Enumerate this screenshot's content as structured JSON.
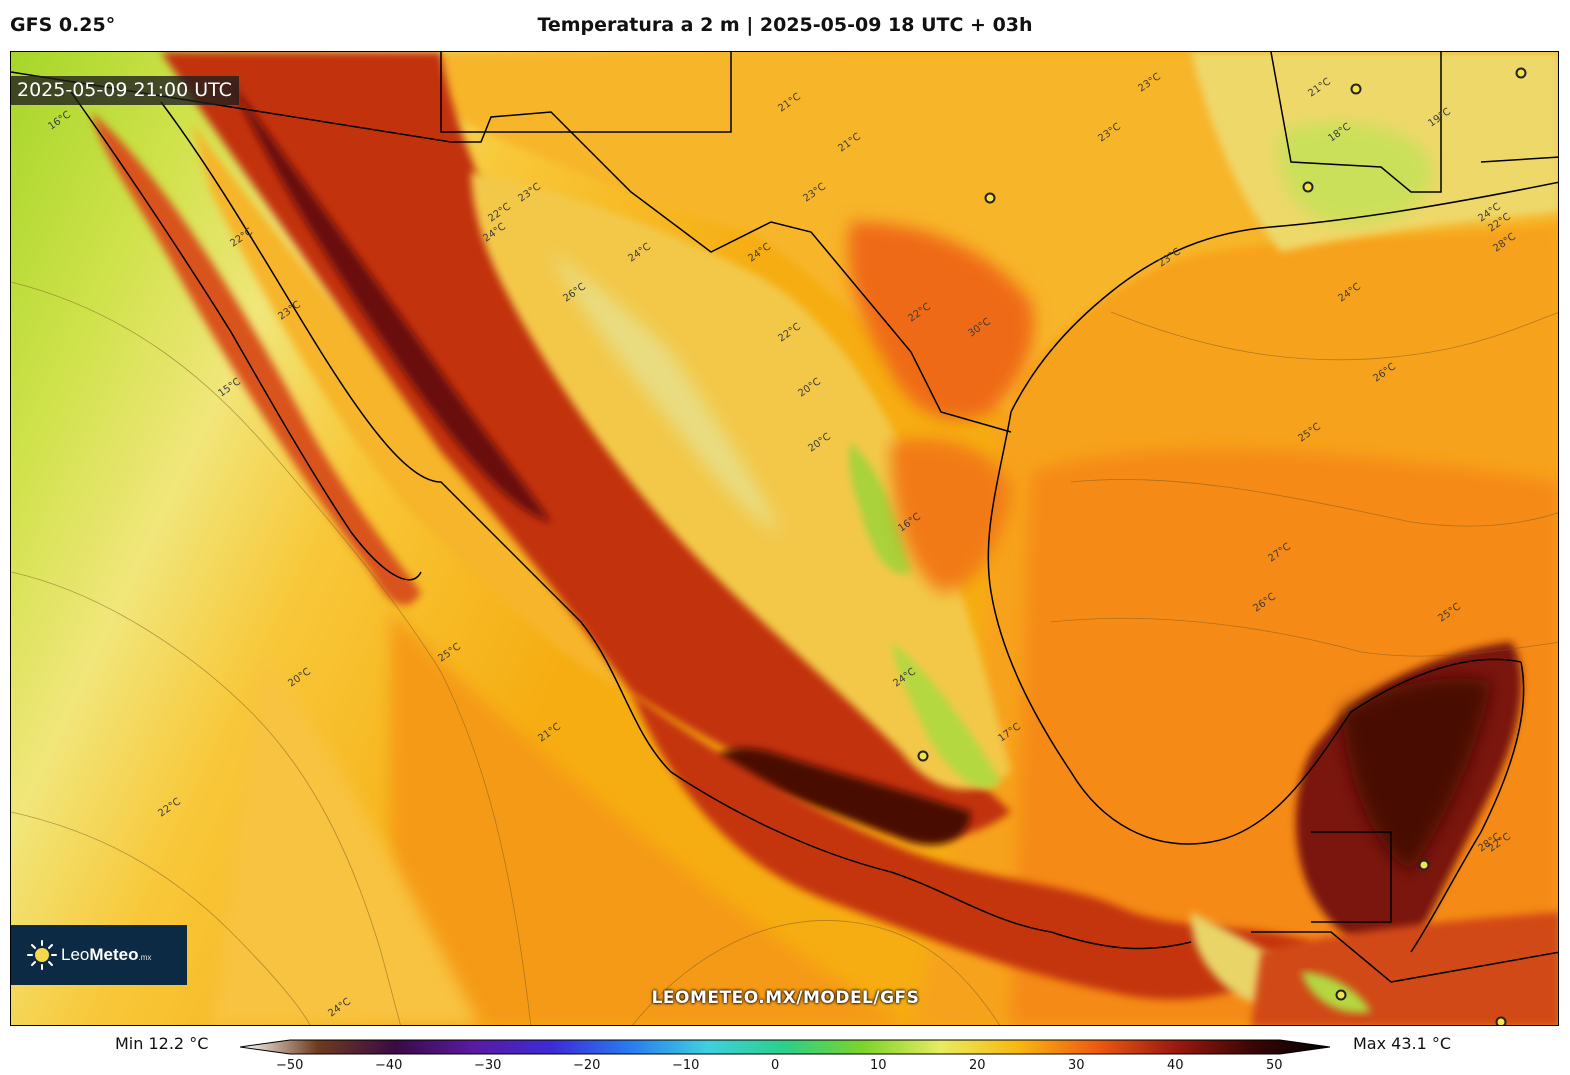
{
  "header": {
    "model": "GFS 0.25°",
    "title": "Temperatura a 2 m | 2025-05-09 18 UTC + 03h"
  },
  "map": {
    "valid_time": "2025-05-09 21:00 UTC",
    "watermark": "LEOMETEO.MX/MODEL/GFS",
    "logo": {
      "name_regular": "Leo",
      "name_bold": "Meteo",
      "suffix": ".mx"
    },
    "contour_labels": [
      "16°C",
      "15°C",
      "22°C",
      "23°C",
      "20°C",
      "22°C",
      "24°C",
      "21°C",
      "25°C",
      "24°C",
      "23°C",
      "26°C",
      "22°C",
      "23°C",
      "22°C",
      "24°C",
      "21°C",
      "21°C",
      "24°C",
      "22°C",
      "20°C",
      "23°C",
      "23°C",
      "24°C",
      "25°C",
      "30°C",
      "24°C",
      "23°C",
      "28°C",
      "22°C",
      "24°C",
      "25°C",
      "27°C",
      "26°C",
      "26°C",
      "28°C",
      "20°C",
      "18°C",
      "19°C",
      "21°C",
      "22°C",
      "17°C",
      "16°C"
    ]
  },
  "colorbar": {
    "min_label": "Min 12.2 °C",
    "max_label": "Max 43.1 °C",
    "ticks": [
      "−50",
      "−40",
      "−30",
      "−20",
      "−10",
      "0",
      "10",
      "20",
      "30",
      "40",
      "50"
    ],
    "range": [
      -50,
      50
    ],
    "colors": [
      "#ffffff",
      "#6e3b1e",
      "#3a0a45",
      "#5a1aa0",
      "#3d2bd6",
      "#2a7af0",
      "#3fd0e0",
      "#2bd08a",
      "#7bd42a",
      "#e8ec60",
      "#f8b810",
      "#ee5a10",
      "#9c1a10",
      "#3a0505",
      "#000000"
    ]
  }
}
